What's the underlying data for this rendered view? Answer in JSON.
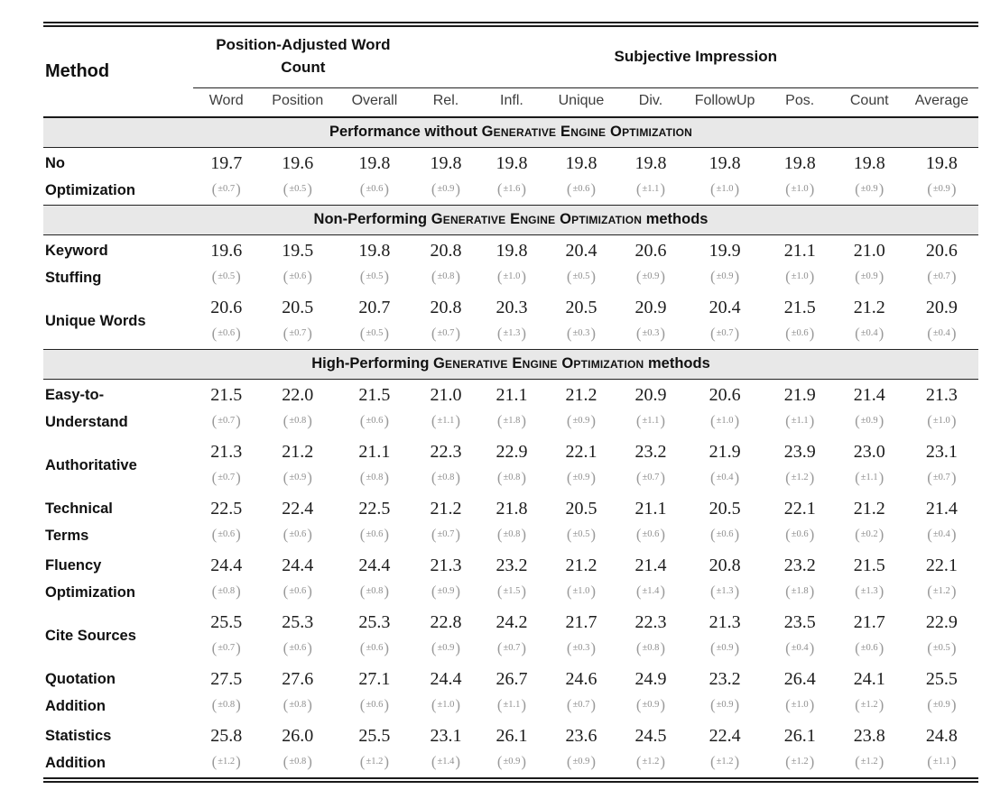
{
  "colors": {
    "band_background": "#e8e8e8",
    "rule": "#1a1a1a",
    "value_text": "#1c1c1c",
    "error_text": "#8e8e8e",
    "subheader_text": "#3d3d3d"
  },
  "table": {
    "header": {
      "method": "Method",
      "groups": [
        {
          "label": "Position-Adjusted Word Count",
          "span": 3
        },
        {
          "label": "Subjective Impression",
          "span": 8
        }
      ],
      "columns": [
        "Word",
        "Position",
        "Overall",
        "Rel.",
        "Infl.",
        "Unique",
        "Div.",
        "FollowUp",
        "Pos.",
        "Count",
        "Average"
      ]
    },
    "sections": [
      {
        "band": {
          "prefix": "Performance without ",
          "smallcaps": "Generative Engine Optimization",
          "suffix": ""
        },
        "rows": [
          {
            "method_lines": [
              "No",
              "Optimization"
            ],
            "values": [
              "19.7",
              "19.6",
              "19.8",
              "19.8",
              "19.8",
              "19.8",
              "19.8",
              "19.8",
              "19.8",
              "19.8",
              "19.8"
            ],
            "errors": [
              "±0.7",
              "±0.5",
              "±0.6",
              "±0.9",
              "±1.6",
              "±0.6",
              "±1.1",
              "±1.0",
              "±1.0",
              "±0.9",
              "±0.9"
            ]
          }
        ]
      },
      {
        "band": {
          "prefix": "Non-Performing ",
          "smallcaps": "Generative Engine Optimization",
          "suffix": " methods"
        },
        "rows": [
          {
            "method_lines": [
              "Keyword",
              "Stuffing"
            ],
            "values": [
              "19.6",
              "19.5",
              "19.8",
              "20.8",
              "19.8",
              "20.4",
              "20.6",
              "19.9",
              "21.1",
              "21.0",
              "20.6"
            ],
            "errors": [
              "±0.5",
              "±0.6",
              "±0.5",
              "±0.8",
              "±1.0",
              "±0.5",
              "±0.9",
              "±0.9",
              "±1.0",
              "±0.9",
              "±0.7"
            ]
          },
          {
            "method_lines": [
              "Unique Words"
            ],
            "values": [
              "20.6",
              "20.5",
              "20.7",
              "20.8",
              "20.3",
              "20.5",
              "20.9",
              "20.4",
              "21.5",
              "21.2",
              "20.9"
            ],
            "errors": [
              "±0.6",
              "±0.7",
              "±0.5",
              "±0.7",
              "±1.3",
              "±0.3",
              "±0.3",
              "±0.7",
              "±0.6",
              "±0.4",
              "±0.4"
            ]
          }
        ]
      },
      {
        "band": {
          "prefix": "High-Performing ",
          "smallcaps": "Generative Engine Optimization",
          "suffix": " methods"
        },
        "rows": [
          {
            "method_lines": [
              "Easy-to-",
              "Understand"
            ],
            "values": [
              "21.5",
              "22.0",
              "21.5",
              "21.0",
              "21.1",
              "21.2",
              "20.9",
              "20.6",
              "21.9",
              "21.4",
              "21.3"
            ],
            "errors": [
              "±0.7",
              "±0.8",
              "±0.6",
              "±1.1",
              "±1.8",
              "±0.9",
              "±1.1",
              "±1.0",
              "±1.1",
              "±0.9",
              "±1.0"
            ]
          },
          {
            "method_lines": [
              "Authoritative"
            ],
            "values": [
              "21.3",
              "21.2",
              "21.1",
              "22.3",
              "22.9",
              "22.1",
              "23.2",
              "21.9",
              "23.9",
              "23.0",
              "23.1"
            ],
            "errors": [
              "±0.7",
              "±0.9",
              "±0.8",
              "±0.8",
              "±0.8",
              "±0.9",
              "±0.7",
              "±0.4",
              "±1.2",
              "±1.1",
              "±0.7"
            ]
          },
          {
            "method_lines": [
              "Technical",
              "Terms"
            ],
            "values": [
              "22.5",
              "22.4",
              "22.5",
              "21.2",
              "21.8",
              "20.5",
              "21.1",
              "20.5",
              "22.1",
              "21.2",
              "21.4"
            ],
            "errors": [
              "±0.6",
              "±0.6",
              "±0.6",
              "±0.7",
              "±0.8",
              "±0.5",
              "±0.6",
              "±0.6",
              "±0.6",
              "±0.2",
              "±0.4"
            ]
          },
          {
            "method_lines": [
              "Fluency",
              "Optimization"
            ],
            "values": [
              "24.4",
              "24.4",
              "24.4",
              "21.3",
              "23.2",
              "21.2",
              "21.4",
              "20.8",
              "23.2",
              "21.5",
              "22.1"
            ],
            "errors": [
              "±0.8",
              "±0.6",
              "±0.8",
              "±0.9",
              "±1.5",
              "±1.0",
              "±1.4",
              "±1.3",
              "±1.8",
              "±1.3",
              "±1.2"
            ]
          },
          {
            "method_lines": [
              "Cite Sources"
            ],
            "values": [
              "25.5",
              "25.3",
              "25.3",
              "22.8",
              "24.2",
              "21.7",
              "22.3",
              "21.3",
              "23.5",
              "21.7",
              "22.9"
            ],
            "errors": [
              "±0.7",
              "±0.6",
              "±0.6",
              "±0.9",
              "±0.7",
              "±0.3",
              "±0.8",
              "±0.9",
              "±0.4",
              "±0.6",
              "±0.5"
            ]
          },
          {
            "method_lines": [
              "Quotation",
              "Addition"
            ],
            "values": [
              "27.5",
              "27.6",
              "27.1",
              "24.4",
              "26.7",
              "24.6",
              "24.9",
              "23.2",
              "26.4",
              "24.1",
              "25.5"
            ],
            "errors": [
              "±0.8",
              "±0.8",
              "±0.6",
              "±1.0",
              "±1.1",
              "±0.7",
              "±0.9",
              "±0.9",
              "±1.0",
              "±1.2",
              "±0.9"
            ]
          },
          {
            "method_lines": [
              "Statistics",
              "Addition"
            ],
            "values": [
              "25.8",
              "26.0",
              "25.5",
              "23.1",
              "26.1",
              "23.6",
              "24.5",
              "22.4",
              "26.1",
              "23.8",
              "24.8"
            ],
            "errors": [
              "±1.2",
              "±0.8",
              "±1.2",
              "±1.4",
              "±0.9",
              "±0.9",
              "±1.2",
              "±1.2",
              "±1.2",
              "±1.2",
              "±1.1"
            ]
          }
        ]
      }
    ]
  }
}
